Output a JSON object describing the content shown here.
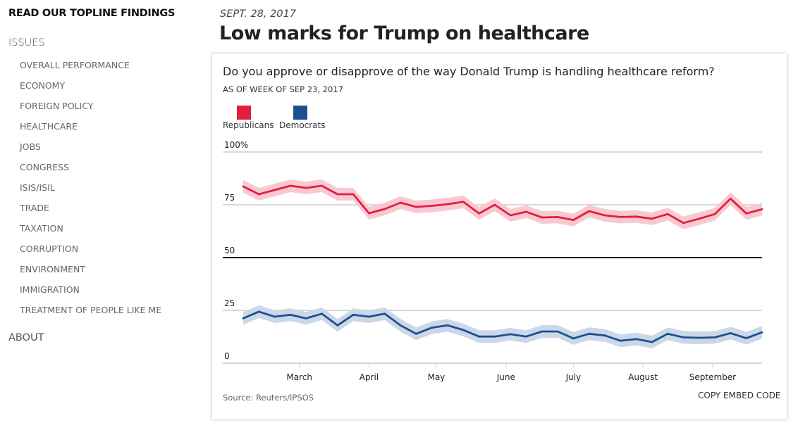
{
  "sidebar": {
    "heading": "READ OUR TOPLINE FINDINGS",
    "section": "ISSUES",
    "items": [
      "OVERALL PERFORMANCE",
      "ECONOMY",
      "FOREIGN POLICY",
      "HEALTHCARE",
      "JOBS",
      "CONGRESS",
      "ISIS/ISIL",
      "TRADE",
      "TAXATION",
      "CORRUPTION",
      "ENVIRONMENT",
      "IMMIGRATION",
      "TREATMENT OF PEOPLE LIKE ME"
    ],
    "about": "ABOUT"
  },
  "header": {
    "date": "SEPT. 28, 2017",
    "title": "Low marks for Trump on healthcare"
  },
  "card": {
    "source": "Source: Reuters/IPSOS",
    "embed_label": "COPY EMBED CODE"
  },
  "chart_data": {
    "type": "line",
    "title": "Do you approve or disapprove of the way Donald Trump is handling healthcare reform?",
    "subtitle": "AS OF WEEK OF SEP 23, 2017",
    "legend_position": "top-left",
    "ylim": [
      0,
      100
    ],
    "yticks": [
      "0",
      "25",
      "50",
      "75",
      "100%"
    ],
    "ytick_values": [
      0,
      25,
      50,
      75,
      100
    ],
    "xtick_labels": [
      "March",
      "April",
      "May",
      "June",
      "July",
      "August",
      "September"
    ],
    "xtick_dates": [
      "2017-03-01",
      "2017-04-01",
      "2017-05-01",
      "2017-06-01",
      "2017-07-01",
      "2017-08-01",
      "2017-09-01"
    ],
    "grid": true,
    "reference_line": 50,
    "uncertainty_band": 3,
    "x": [
      "2017-02-04",
      "2017-02-11",
      "2017-02-18",
      "2017-02-25",
      "2017-03-04",
      "2017-03-11",
      "2017-03-18",
      "2017-03-25",
      "2017-04-01",
      "2017-04-08",
      "2017-04-15",
      "2017-04-22",
      "2017-04-29",
      "2017-05-06",
      "2017-05-13",
      "2017-05-20",
      "2017-05-27",
      "2017-06-03",
      "2017-06-10",
      "2017-06-17",
      "2017-06-24",
      "2017-07-01",
      "2017-07-08",
      "2017-07-15",
      "2017-07-22",
      "2017-07-29",
      "2017-08-05",
      "2017-08-12",
      "2017-08-19",
      "2017-08-26",
      "2017-09-02",
      "2017-09-09",
      "2017-09-16",
      "2017-09-23"
    ],
    "series": [
      {
        "name": "Republicans",
        "color": "#e31e3f",
        "band_color": "#f8c9d1",
        "values": [
          83.7,
          80,
          82,
          84,
          83,
          84,
          80,
          80,
          71,
          73,
          76,
          74,
          74.5,
          75.3,
          76.4,
          70.9,
          75,
          70,
          71.7,
          69,
          69.2,
          67.8,
          72,
          70,
          69.2,
          69.4,
          68.4,
          70.6,
          66.4,
          68.4,
          70.6,
          77.9,
          70.9,
          72.9
        ]
      },
      {
        "name": "Democrats",
        "color": "#1f4f93",
        "band_color": "#cbd8e8",
        "values": [
          21.2,
          24.4,
          22,
          22.9,
          21.2,
          23.4,
          17.9,
          22.9,
          22,
          23.4,
          17.9,
          13.9,
          16.8,
          17.9,
          15.7,
          12.6,
          12.6,
          13.7,
          12.6,
          15,
          15,
          11.7,
          13.9,
          13.1,
          10.6,
          11.4,
          10,
          13.9,
          12.2,
          12,
          12.2,
          14.2,
          11.8,
          14.6
        ]
      }
    ]
  }
}
